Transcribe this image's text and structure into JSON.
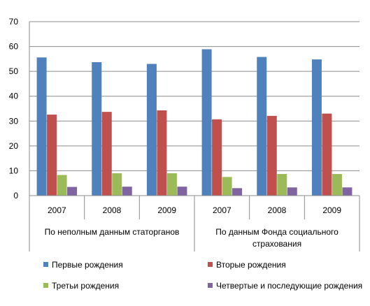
{
  "chart_data": {
    "type": "bar",
    "title": "",
    "xlabel": "",
    "ylabel": "",
    "ylim": [
      0,
      70
    ],
    "yticks": [
      0,
      10,
      20,
      30,
      40,
      50,
      60,
      70
    ],
    "grid": true,
    "legend_position": "bottom",
    "categories": [
      "2007",
      "2008",
      "2009",
      "2007",
      "2008",
      "2009"
    ],
    "groups": [
      {
        "label": "По неполным данным статорганов",
        "span": [
          0,
          2
        ]
      },
      {
        "label_lines": [
          "По данным  Фонда  социального",
          "страхования"
        ],
        "span": [
          3,
          5
        ]
      }
    ],
    "series": [
      {
        "name": "Первые рождения",
        "color": "#4F81BD",
        "values": [
          55.6,
          53.7,
          53.0,
          58.9,
          55.8,
          54.8
        ]
      },
      {
        "name": "Вторые рождения",
        "color": "#C0504D",
        "values": [
          32.6,
          33.7,
          34.3,
          30.7,
          32.1,
          33.0
        ]
      },
      {
        "name": "Третьи рождения",
        "color": "#9BBB59",
        "values": [
          8.3,
          9.0,
          9.0,
          7.5,
          8.7,
          8.7
        ]
      },
      {
        "name": "Четвертые и последующие рождения",
        "color": "#8064A2",
        "values": [
          3.5,
          3.6,
          3.6,
          3.0,
          3.3,
          3.3
        ]
      }
    ]
  }
}
